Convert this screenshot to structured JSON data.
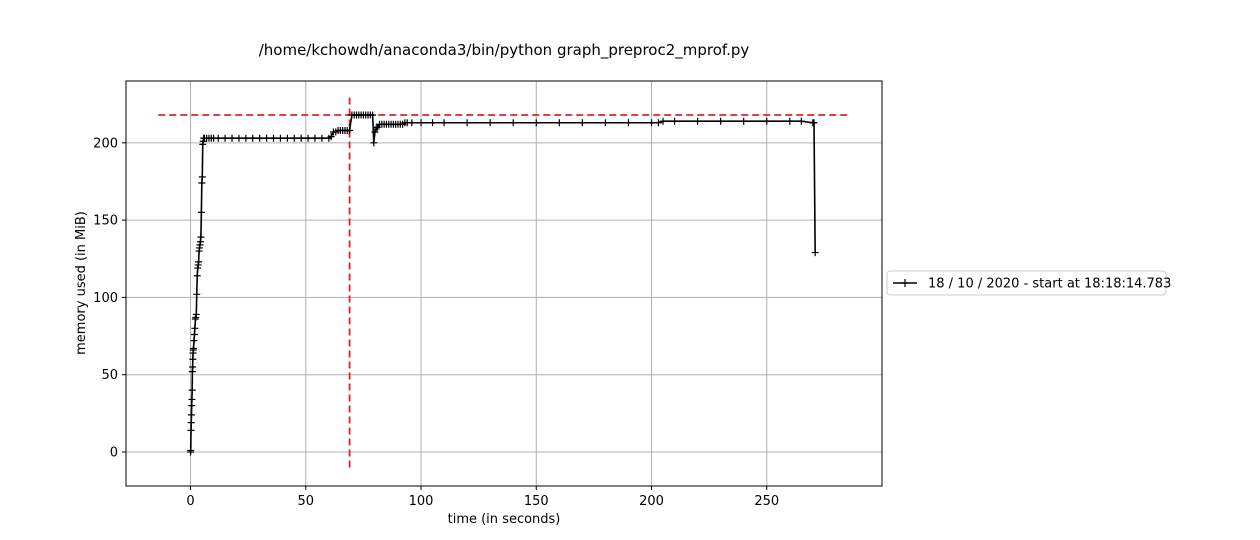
{
  "chart_data": {
    "type": "line",
    "title": "/home/kchowdh/anaconda3/bin/python graph_preproc2_mprof.py",
    "xlabel": "time (in seconds)",
    "ylabel": "memory used (in MiB)",
    "xlim": [
      -28,
      300
    ],
    "ylim": [
      -22,
      240
    ],
    "xticks": [
      0,
      50,
      100,
      150,
      200,
      250
    ],
    "yticks": [
      0,
      50,
      100,
      150,
      200
    ],
    "grid": true,
    "legend_placement": "right",
    "series": [
      {
        "name": "18 / 10 / 2020 - start at 18:18:14.783",
        "color": "#000000",
        "marker": "+",
        "x": [
          0.0,
          0.1,
          0.2,
          0.3,
          0.4,
          0.5,
          0.6,
          0.7,
          0.8,
          0.9,
          1.0,
          1.1,
          1.2,
          1.3,
          1.5,
          1.7,
          1.9,
          2.1,
          2.3,
          2.5,
          2.7,
          2.9,
          3.1,
          3.3,
          3.5,
          3.7,
          3.9,
          4.1,
          4.3,
          4.5,
          4.7,
          4.9,
          5.1,
          5.3,
          5.5,
          5.7,
          6,
          7,
          8,
          9,
          10,
          12,
          15,
          18,
          21,
          24,
          27,
          30,
          33,
          36,
          39,
          42,
          45,
          48,
          51,
          54,
          57,
          60,
          61,
          62,
          63,
          64,
          65,
          66,
          67,
          68,
          69,
          70,
          71,
          72,
          73,
          74,
          75,
          76,
          77,
          78,
          79,
          79.5,
          80,
          80.5,
          81,
          82,
          83,
          84,
          85,
          86,
          87,
          88,
          89,
          90,
          91,
          92,
          93,
          94,
          96,
          100,
          105,
          110,
          120,
          130,
          140,
          150,
          160,
          170,
          180,
          190,
          200,
          203,
          205,
          210,
          220,
          230,
          240,
          250,
          260,
          265,
          270,
          270.5,
          271
        ],
        "values": [
          0,
          1,
          14,
          19,
          24,
          30,
          34,
          40,
          52,
          55,
          60,
          64,
          66,
          67,
          72,
          76,
          80,
          86,
          87,
          89,
          102,
          114,
          119,
          121,
          123,
          130,
          132,
          134,
          136,
          139,
          155,
          174,
          178,
          199,
          201,
          203,
          203,
          203,
          203,
          203,
          203,
          203,
          203,
          203,
          203,
          203,
          203,
          203,
          203,
          203,
          203,
          203,
          203,
          203,
          203,
          203,
          203,
          203,
          204,
          207,
          207,
          208,
          208,
          208,
          208,
          208,
          208,
          218,
          218,
          218,
          218,
          218,
          218,
          218,
          218,
          218,
          218,
          200,
          207,
          209,
          210,
          212,
          212,
          212,
          212,
          212,
          212,
          212,
          212,
          212,
          212,
          212,
          213,
          213,
          213,
          213,
          213,
          213,
          213,
          213,
          213,
          213,
          213,
          213,
          213,
          213,
          213,
          213,
          214,
          214,
          214,
          214,
          214,
          214,
          214,
          214,
          213,
          213,
          129
        ]
      }
    ],
    "reference_lines": [
      {
        "orientation": "horizontal",
        "y": 218,
        "x_range": [
          -14,
          285
        ],
        "color": "#d62728",
        "style": "dashed"
      },
      {
        "orientation": "vertical",
        "x": 69,
        "y_range": [
          -10,
          230
        ],
        "color": "#d62728",
        "style": "dashed"
      }
    ]
  }
}
